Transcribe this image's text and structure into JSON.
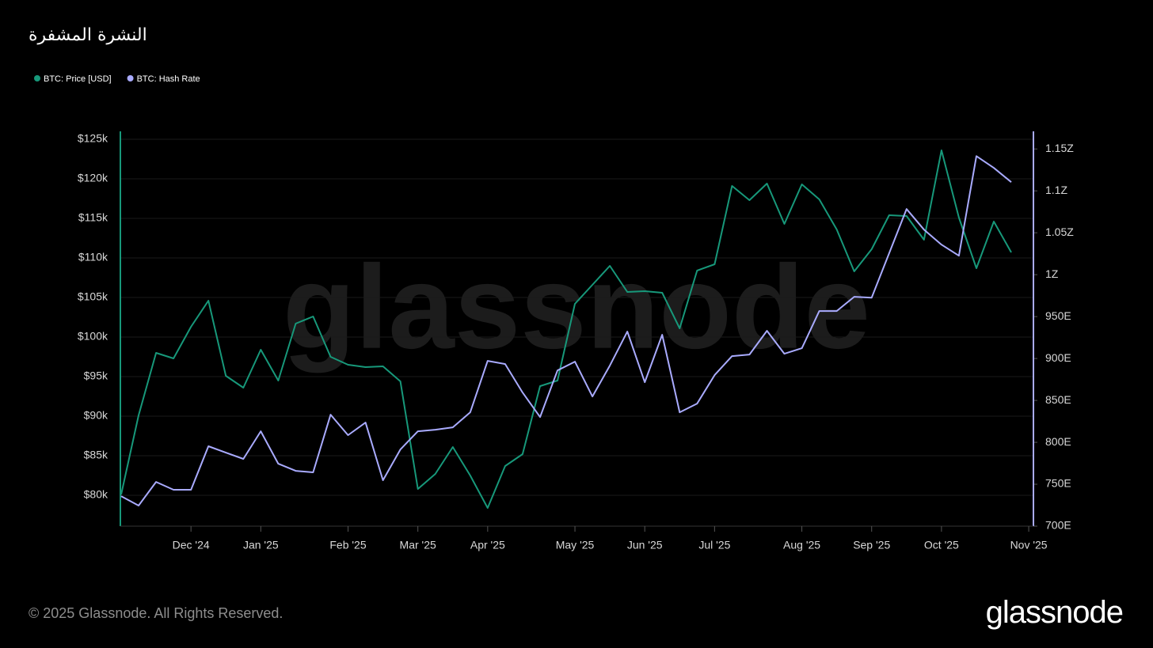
{
  "chart_data": {
    "type": "line",
    "title": "النشرة المشفرة",
    "watermark": "glassnode",
    "categories": [
      null,
      null,
      null,
      null,
      "Dec '24",
      null,
      null,
      null,
      "Jan '25",
      null,
      null,
      null,
      null,
      "Feb '25",
      null,
      null,
      null,
      "Mar '25",
      null,
      null,
      null,
      "Apr '25",
      null,
      null,
      null,
      null,
      "May '25",
      null,
      null,
      null,
      "Jun '25",
      null,
      null,
      null,
      "Jul '25",
      null,
      null,
      null,
      null,
      "Aug '25",
      null,
      null,
      null,
      "Sep '25",
      null,
      null,
      null,
      "Oct '25",
      null,
      null,
      null,
      null,
      "Nov '25"
    ],
    "series": [
      {
        "name": "BTC: Price [USD]",
        "color": "#17987a",
        "axis": "y",
        "values": [
          80100,
          90100,
          98000,
          97300,
          101300,
          104600,
          95100,
          93600,
          98400,
          94500,
          101700,
          102600,
          97500,
          96500,
          96200,
          96300,
          94400,
          80800,
          82700,
          86100,
          82500,
          78400,
          83700,
          85200,
          93800,
          94500,
          104200,
          106600,
          109000,
          105700,
          105800,
          105600,
          101100,
          108400,
          109200,
          119100,
          117300,
          119400,
          114300,
          119300,
          117400,
          113600,
          108300,
          111100,
          115400,
          115300,
          112300,
          123600,
          115100,
          108700,
          114600,
          110700,
          null
        ]
      },
      {
        "name": "BTC: Hash Rate",
        "color": "#a9abff",
        "axis": "y2",
        "values": [
          735.8,
          724.5,
          752.8,
          743.4,
          743.4,
          795.3,
          787.7,
          780.2,
          813.2,
          774.5,
          766.0,
          764.2,
          833.0,
          808.5,
          823.6,
          754.7,
          791.5,
          813.2,
          815.1,
          817.9,
          835.8,
          897.2,
          893.4,
          859.4,
          830.2,
          885.8,
          896.2,
          854.7,
          891.5,
          932.1,
          871.7,
          928.3,
          835.8,
          846.2,
          880.2,
          902.8,
          904.7,
          933.0,
          905.7,
          912.3,
          956.6,
          956.6,
          973.6,
          972.6,
          1025.5,
          1078.3,
          1053.8,
          1035.8,
          1022.6,
          1141.5,
          1127.4,
          1110.4,
          null
        ]
      }
    ],
    "ylim": [
      76100,
      126000
    ],
    "yticks": [
      {
        "value": 80000,
        "label": "$80k"
      },
      {
        "value": 85000,
        "label": "$85k"
      },
      {
        "value": 90000,
        "label": "$90k"
      },
      {
        "value": 95000,
        "label": "$95k"
      },
      {
        "value": 100000,
        "label": "$100k"
      },
      {
        "value": 105000,
        "label": "$105k"
      },
      {
        "value": 110000,
        "label": "$110k"
      },
      {
        "value": 115000,
        "label": "$115k"
      },
      {
        "value": 120000,
        "label": "$120k"
      },
      {
        "value": 125000,
        "label": "$125k"
      }
    ],
    "y2lim": [
      700,
      1171
    ],
    "y2ticks": [
      {
        "value": 700,
        "label": "700E"
      },
      {
        "value": 750,
        "label": "750E"
      },
      {
        "value": 800,
        "label": "800E"
      },
      {
        "value": 850,
        "label": "850E"
      },
      {
        "value": 900,
        "label": "900E"
      },
      {
        "value": 950,
        "label": "950E"
      },
      {
        "value": 1000,
        "label": "1Z"
      },
      {
        "value": 1050,
        "label": "1.05Z"
      },
      {
        "value": 1100,
        "label": "1.1Z"
      },
      {
        "value": 1150,
        "label": "1.15Z"
      }
    ],
    "grid": true,
    "legend": "top-left"
  },
  "footer": {
    "copyright": "© 2025 Glassnode. All Rights Reserved.",
    "logo": "glassnode"
  }
}
